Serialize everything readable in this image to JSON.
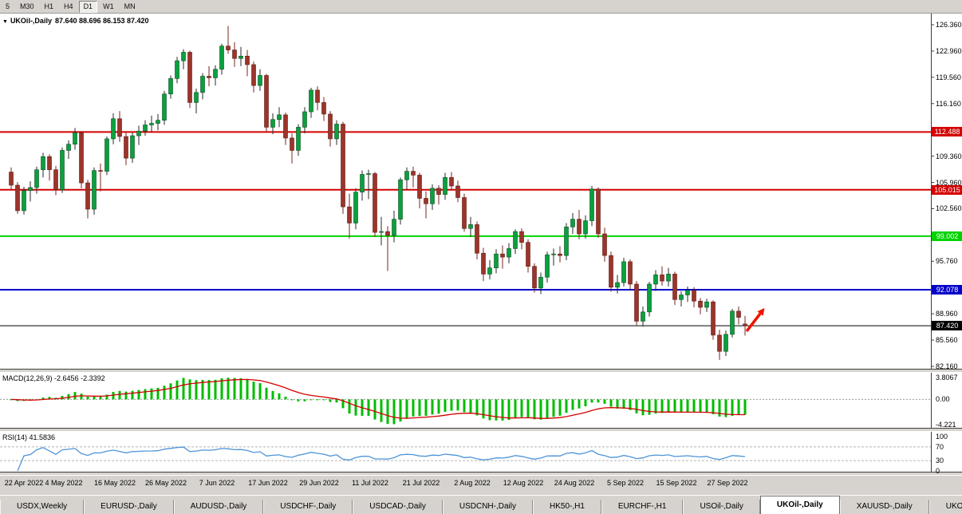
{
  "toolbar": {
    "timeframes": [
      {
        "label": "5"
      },
      {
        "label": "M30"
      },
      {
        "label": "H1"
      },
      {
        "label": "H4"
      },
      {
        "label": "D1",
        "active": true
      },
      {
        "label": "W1"
      },
      {
        "label": "MN"
      }
    ]
  },
  "chart": {
    "header": {
      "symbol": "UKOil-,Daily",
      "ohlc": "87.640 88.696 86.153 87.420"
    },
    "indicators": {
      "macd": {
        "label": "MACD(12,26,9)",
        "values": "-2.6456 -2.3392"
      },
      "rsi": {
        "label": "RSI(14)",
        "value": "41.5836"
      }
    }
  },
  "chart_data": {
    "type": "candlestick",
    "title": "UKOil-,Daily",
    "symbol": "UKOil-",
    "timeframe": "Daily",
    "ohlc_header": {
      "open": 87.64,
      "high": 88.696,
      "low": 86.153,
      "close": 87.42
    },
    "y_axis": {
      "gridlines": [
        126.36,
        122.96,
        119.56,
        116.16,
        109.36,
        105.96,
        102.56,
        95.76,
        88.96,
        85.56,
        82.16
      ]
    },
    "x_axis": {
      "start_index": 0,
      "step": 8,
      "labels": [
        "22 Apr 2022",
        "4 May 2022",
        "16 May 2022",
        "26 May 2022",
        "7 Jun 2022",
        "17 Jun 2022",
        "29 Jun 2022",
        "11 Jul 2022",
        "21 Jul 2022",
        "2 Aug 2022",
        "12 Aug 2022",
        "24 Aug 2022",
        "5 Sep 2022",
        "15 Sep 2022",
        "27 Sep 2022"
      ]
    },
    "hlines": [
      {
        "price": 112.488,
        "color": "#d40000",
        "width": 2
      },
      {
        "price": 105.015,
        "color": "#d40000",
        "width": 2
      },
      {
        "price": 99.002,
        "color": "#00d200",
        "width": 2
      },
      {
        "price": 92.078,
        "color": "#0000c8",
        "width": 2
      },
      {
        "price": 87.42,
        "color": "#000000",
        "width": 1
      }
    ],
    "candles": [
      [
        107.3,
        107.9,
        105.0,
        105.6
      ],
      [
        105.6,
        106.0,
        101.9,
        102.3
      ],
      [
        102.3,
        105.4,
        101.8,
        104.9
      ],
      [
        104.9,
        106.1,
        103.5,
        105.3
      ],
      [
        105.3,
        108.0,
        104.5,
        107.6
      ],
      [
        107.6,
        109.8,
        106.6,
        109.3
      ],
      [
        109.3,
        109.6,
        106.2,
        107.6
      ],
      [
        107.6,
        108.1,
        104.3,
        105.0
      ],
      [
        105.0,
        110.5,
        104.6,
        110.1
      ],
      [
        110.1,
        111.4,
        109.0,
        110.9
      ],
      [
        110.9,
        113.0,
        110.2,
        112.4
      ],
      [
        112.4,
        112.6,
        105.2,
        105.9
      ],
      [
        105.9,
        106.3,
        101.3,
        102.5
      ],
      [
        102.5,
        107.9,
        101.8,
        107.5
      ],
      [
        107.5,
        108.4,
        104.8,
        107.4
      ],
      [
        107.4,
        111.9,
        106.9,
        111.6
      ],
      [
        111.6,
        114.9,
        110.9,
        114.2
      ],
      [
        114.2,
        115.2,
        111.2,
        111.9
      ],
      [
        111.9,
        112.4,
        108.2,
        109.1
      ],
      [
        109.1,
        112.4,
        108.5,
        112.0
      ],
      [
        112.0,
        113.3,
        110.8,
        112.6
      ],
      [
        112.6,
        114.0,
        112.0,
        113.4
      ],
      [
        113.4,
        114.6,
        112.4,
        113.6
      ],
      [
        113.6,
        114.8,
        112.7,
        114.0
      ],
      [
        114.0,
        117.8,
        113.4,
        117.4
      ],
      [
        117.4,
        119.8,
        116.8,
        119.4
      ],
      [
        119.4,
        122.2,
        118.8,
        121.7
      ],
      [
        121.7,
        123.2,
        120.6,
        122.8
      ],
      [
        122.8,
        123.0,
        115.6,
        116.3
      ],
      [
        116.3,
        118.1,
        114.9,
        117.6
      ],
      [
        117.6,
        120.1,
        116.7,
        119.7
      ],
      [
        119.7,
        121.0,
        118.4,
        119.5
      ],
      [
        119.5,
        121.1,
        118.5,
        120.6
      ],
      [
        120.6,
        123.9,
        119.9,
        123.6
      ],
      [
        123.6,
        126.2,
        122.6,
        123.1
      ],
      [
        123.1,
        124.1,
        120.9,
        122.0
      ],
      [
        122.0,
        123.5,
        121.0,
        122.3
      ],
      [
        122.3,
        123.1,
        119.7,
        121.2
      ],
      [
        121.2,
        121.6,
        117.6,
        118.5
      ],
      [
        118.5,
        120.6,
        117.8,
        119.8
      ],
      [
        119.8,
        120.0,
        112.5,
        113.1
      ],
      [
        113.1,
        114.9,
        112.2,
        114.1
      ],
      [
        114.1,
        115.7,
        113.1,
        114.7
      ],
      [
        114.7,
        115.0,
        110.8,
        111.7
      ],
      [
        111.7,
        112.3,
        108.4,
        110.1
      ],
      [
        110.1,
        113.5,
        109.4,
        113.1
      ],
      [
        113.1,
        115.7,
        112.3,
        115.1
      ],
      [
        115.1,
        118.2,
        114.3,
        117.9
      ],
      [
        117.9,
        118.4,
        115.3,
        116.3
      ],
      [
        116.3,
        117.0,
        113.9,
        114.8
      ],
      [
        114.8,
        115.2,
        110.6,
        111.6
      ],
      [
        111.6,
        114.0,
        110.8,
        113.5
      ],
      [
        113.5,
        113.8,
        101.9,
        102.8
      ],
      [
        102.8,
        104.5,
        98.7,
        100.7
      ],
      [
        100.7,
        105.2,
        99.9,
        104.7
      ],
      [
        104.7,
        107.5,
        103.6,
        107.0
      ],
      [
        107.0,
        107.6,
        103.8,
        107.1
      ],
      [
        107.1,
        107.3,
        98.9,
        99.5
      ],
      [
        99.5,
        101.5,
        97.8,
        99.6
      ],
      [
        99.6,
        100.3,
        94.5,
        99.1
      ],
      [
        99.1,
        102.3,
        98.2,
        101.2
      ],
      [
        101.2,
        106.6,
        100.5,
        106.3
      ],
      [
        106.3,
        107.9,
        105.0,
        107.4
      ],
      [
        107.4,
        108.0,
        105.3,
        106.9
      ],
      [
        106.9,
        107.2,
        102.6,
        103.9
      ],
      [
        103.9,
        104.8,
        101.3,
        103.2
      ],
      [
        103.2,
        105.7,
        102.4,
        105.2
      ],
      [
        105.2,
        105.6,
        103.1,
        104.4
      ],
      [
        104.4,
        107.2,
        103.7,
        106.6
      ],
      [
        106.6,
        107.3,
        104.9,
        105.5
      ],
      [
        105.5,
        106.2,
        103.4,
        104.0
      ],
      [
        104.0,
        104.5,
        99.6,
        100.0
      ],
      [
        100.0,
        101.5,
        98.9,
        100.5
      ],
      [
        100.5,
        100.9,
        96.0,
        96.8
      ],
      [
        96.8,
        97.5,
        93.2,
        94.1
      ],
      [
        94.1,
        95.9,
        93.4,
        94.9
      ],
      [
        94.9,
        97.3,
        94.2,
        96.7
      ],
      [
        96.7,
        97.8,
        94.8,
        96.3
      ],
      [
        96.3,
        98.1,
        95.5,
        97.4
      ],
      [
        97.4,
        99.9,
        96.7,
        99.6
      ],
      [
        99.6,
        100.0,
        97.3,
        98.2
      ],
      [
        98.2,
        98.6,
        94.3,
        95.1
      ],
      [
        95.1,
        95.5,
        91.7,
        92.3
      ],
      [
        92.3,
        94.3,
        91.5,
        93.7
      ],
      [
        93.7,
        97.0,
        93.0,
        96.6
      ],
      [
        96.6,
        97.4,
        95.2,
        96.7
      ],
      [
        96.7,
        97.7,
        95.6,
        96.5
      ],
      [
        96.5,
        100.7,
        95.9,
        100.2
      ],
      [
        100.2,
        102.0,
        99.3,
        101.2
      ],
      [
        101.2,
        102.4,
        98.6,
        99.3
      ],
      [
        99.3,
        101.7,
        98.7,
        101.0
      ],
      [
        101.0,
        105.5,
        100.3,
        105.1
      ],
      [
        105.1,
        105.3,
        98.8,
        99.3
      ],
      [
        99.3,
        100.1,
        95.7,
        96.5
      ],
      [
        96.5,
        97.0,
        91.8,
        92.4
      ],
      [
        92.4,
        94.0,
        91.6,
        93.0
      ],
      [
        93.0,
        96.2,
        92.5,
        95.7
      ],
      [
        95.7,
        96.0,
        92.1,
        92.8
      ],
      [
        92.8,
        93.2,
        87.5,
        88.0
      ],
      [
        88.0,
        89.9,
        87.3,
        89.2
      ],
      [
        89.2,
        93.1,
        88.6,
        92.8
      ],
      [
        92.8,
        94.6,
        91.9,
        94.0
      ],
      [
        94.0,
        95.1,
        92.6,
        93.2
      ],
      [
        93.2,
        94.9,
        92.5,
        94.1
      ],
      [
        94.1,
        94.4,
        90.1,
        90.8
      ],
      [
        90.8,
        91.9,
        89.9,
        91.4
      ],
      [
        91.4,
        92.5,
        90.5,
        92.0
      ],
      [
        92.0,
        92.4,
        89.8,
        90.6
      ],
      [
        90.6,
        91.0,
        88.9,
        89.8
      ],
      [
        89.8,
        90.9,
        89.2,
        90.5
      ],
      [
        90.5,
        90.7,
        85.6,
        86.2
      ],
      [
        86.2,
        86.9,
        83.0,
        84.1
      ],
      [
        84.1,
        86.8,
        83.5,
        86.3
      ],
      [
        86.3,
        89.6,
        85.9,
        89.3
      ],
      [
        89.3,
        89.9,
        87.6,
        88.5
      ],
      [
        87.64,
        88.696,
        86.153,
        87.42
      ]
    ],
    "macd": {
      "params": [
        12,
        26,
        9
      ],
      "main_value": -2.6456,
      "signal_value": -2.3392,
      "axis_labels": [
        "3.8067",
        "0.00",
        "-4.221"
      ],
      "axis_max": 3.8067,
      "axis_min": -4.221
    },
    "rsi": {
      "period": 14,
      "value": 41.5836,
      "levels": [
        70,
        30
      ],
      "axis_labels": [
        "100",
        "70",
        "30",
        "0"
      ]
    },
    "annotations": [
      {
        "type": "arrow",
        "style": "up-right",
        "color": "#f01400"
      }
    ],
    "colors": {
      "bull": "#0ba03e",
      "bull_border": "#0a4d20",
      "bull_wick": "#2a2a2a",
      "bear": "#9c342a",
      "bear_border": "#5e1c14",
      "bear_wick": "#79251c",
      "macd_hist": "#00bc00",
      "macd_signal": "#d40000",
      "rsi": "#4f94d8",
      "hline_red": "#d40000",
      "hline_green": "#00d200",
      "hline_blue": "#0000c8"
    }
  },
  "tabs": [
    {
      "label": "USDX,Weekly"
    },
    {
      "label": "EURUSD-,Daily"
    },
    {
      "label": "AUDUSD-,Daily"
    },
    {
      "label": "USDCHF-,Daily"
    },
    {
      "label": "USDCAD-,Daily"
    },
    {
      "label": "USDCNH-,Daily"
    },
    {
      "label": "HK50-,H1"
    },
    {
      "label": "EURCHF-,H1"
    },
    {
      "label": "USOil-,Daily"
    },
    {
      "label": "UKOil-,Daily",
      "active": true
    },
    {
      "label": "XAUUSD-,Daily"
    },
    {
      "label": "UKOil-,Daily"
    }
  ]
}
